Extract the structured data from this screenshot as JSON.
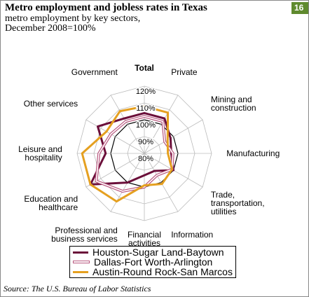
{
  "chart_data": {
    "type": "radar",
    "title": "Metro employment and jobless rates in Texas",
    "badge": "16",
    "subtitle": "metro employment by key sectors, December 2008=100%",
    "source": "Source: The U.S. Bureau of Labor Statistics",
    "categories": [
      "Total",
      "Private",
      "Mining and construction",
      "Manufacturing",
      "Trade, transportation, utilities",
      "Information",
      "Financial activities",
      "Professional and business services",
      "Education and healthcare",
      "Leisure and hospitality",
      "Other services",
      "Government"
    ],
    "rlim": [
      80,
      120
    ],
    "rticks": [
      {
        "value": 80,
        "label": "80%"
      },
      {
        "value": 90,
        "label": "90%"
      },
      {
        "value": 100,
        "label": "100%"
      },
      {
        "value": 110,
        "label": "110%"
      },
      {
        "value": 120,
        "label": "120%"
      }
    ],
    "series": [
      {
        "name": "Houston-Sugar Land-Baytown",
        "color": "#6b0f3a",
        "style": "solid",
        "values": [
          104,
          104,
          98,
          96,
          100,
          92,
          93,
          100,
          117,
          103,
          112,
          104
        ]
      },
      {
        "name": "Dallas-Fort Worth-Arlington",
        "color": "#b8577e",
        "style": "double",
        "values": [
          102,
          102,
          94,
          97,
          99,
          95,
          100,
          106,
          113,
          107,
          103,
          102
        ]
      },
      {
        "name": "Austin-Round Rock-San Marcos",
        "color": "#e5a020",
        "style": "solid",
        "values": [
          108,
          108,
          96,
          94,
          99,
          101,
          99,
          113,
          117,
          117,
          106,
          109
        ]
      }
    ]
  }
}
